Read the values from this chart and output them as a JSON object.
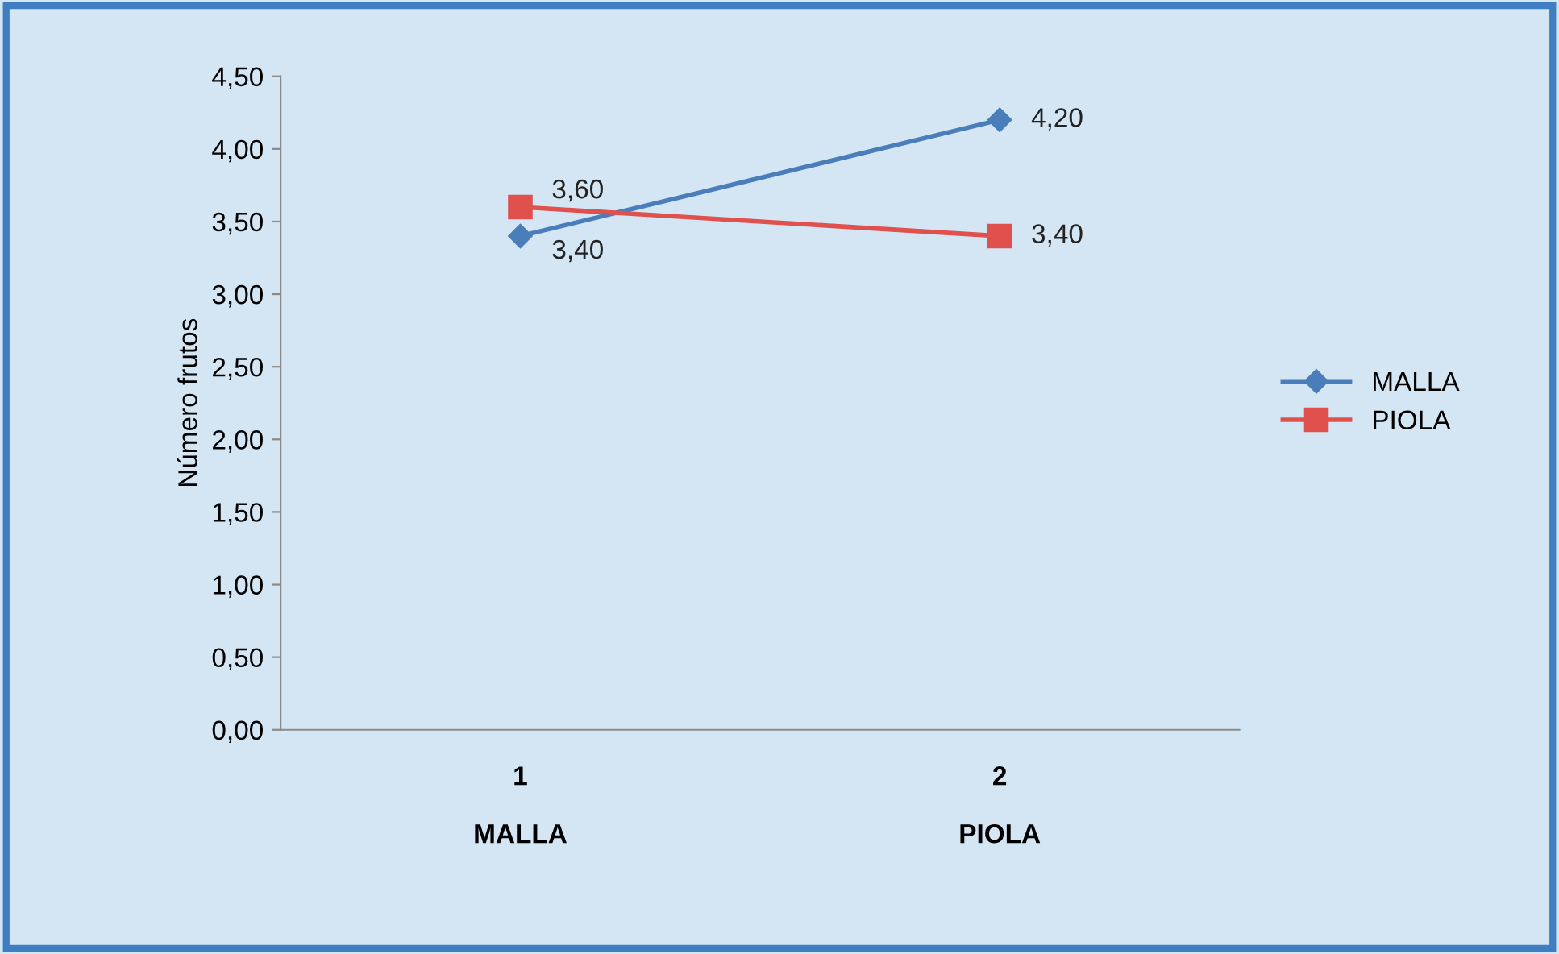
{
  "chart_data": {
    "type": "line",
    "ylabel": "Número frutos",
    "categories": [
      "1\n\nMALLA",
      "2\n\nPIOLA"
    ],
    "series": [
      {
        "name": "MALLA",
        "color": "#4a7ebb",
        "marker": "diamond",
        "values": [
          3.4,
          4.2
        ],
        "value_labels": [
          "3,40",
          "4,20"
        ]
      },
      {
        "name": "PIOLA",
        "color": "#e0504d",
        "marker": "square",
        "values": [
          3.6,
          3.4
        ],
        "value_labels": [
          "3,60",
          "3,40"
        ]
      }
    ],
    "ylim": [
      0,
      4.5
    ],
    "yticks": [
      {
        "value": 0,
        "label": "0,00"
      },
      {
        "value": 0.5,
        "label": "0,50"
      },
      {
        "value": 1,
        "label": "1,00"
      },
      {
        "value": 1.5,
        "label": "1,50"
      },
      {
        "value": 2,
        "label": "2,00"
      },
      {
        "value": 2.5,
        "label": "2,50"
      },
      {
        "value": 3,
        "label": "3,00"
      },
      {
        "value": 3.5,
        "label": "3,50"
      },
      {
        "value": 4,
        "label": "4,00"
      },
      {
        "value": 4.5,
        "label": "4,50"
      }
    ],
    "grid": false,
    "legend": "right",
    "line_style": "solid"
  }
}
